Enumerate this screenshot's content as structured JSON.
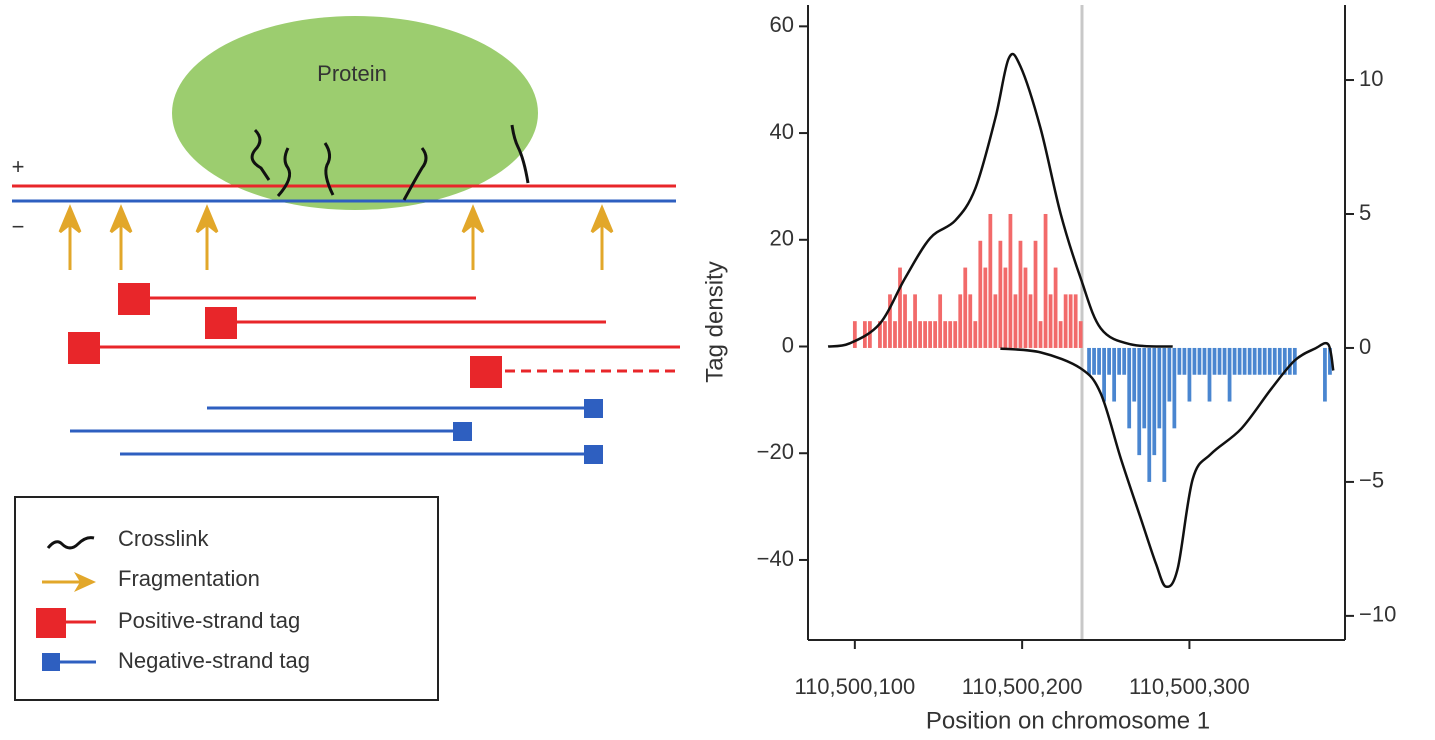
{
  "diagram": {
    "protein_label": "Protein",
    "plus_label": "+",
    "minus_label": "−",
    "legend": [
      "Crosslink",
      "Fragmentation",
      "Positive-strand tag",
      "Negative-strand tag"
    ]
  },
  "chart_data": {
    "type": "line",
    "y_label": "Tag density",
    "x_label": "Position on chromosome 1",
    "xlim": [
      110500072,
      110500393
    ],
    "ylim": [
      -55,
      64
    ],
    "y2lim": [
      -10.9,
      12.8
    ],
    "xticks": [
      {
        "value": 110500100,
        "label": "110,500,100"
      },
      {
        "value": 110500200,
        "label": "110,500,200"
      },
      {
        "value": 110500300,
        "label": "110,500,300"
      }
    ],
    "yticks": [
      60,
      40,
      20,
      0,
      {
        "value": -20,
        "label": "−20"
      },
      {
        "value": -40,
        "label": "−40"
      }
    ],
    "y2ticks": [
      10,
      5,
      0,
      {
        "value": -5,
        "label": "−5"
      },
      {
        "value": -10,
        "label": "−10"
      }
    ],
    "series": [
      {
        "type": "line",
        "color": "#111111",
        "x": [
          110500084,
          110500097,
          110500115,
          110500130,
          110500145,
          110500160,
          110500172,
          110500184,
          110500192,
          110500199,
          110500211,
          110500223,
          110500235,
          110500247,
          110500265,
          110500290
        ],
        "values": [
          0,
          0.6,
          4.3,
          12.8,
          20.3,
          23.6,
          29.6,
          42.8,
          54,
          52.5,
          40.9,
          24.9,
          12.8,
          3.4,
          0.4,
          0
        ]
      },
      {
        "type": "line",
        "color": "#111111",
        "x": [
          110500187,
          110500211,
          110500235,
          110500247,
          110500259,
          110500271,
          110500280,
          110500286,
          110500293,
          110500302,
          110500313,
          110500331,
          110500349,
          110500363,
          110500375,
          110500383,
          110500386
        ],
        "values": [
          -0.4,
          -1.1,
          -4.1,
          -8.8,
          -21,
          -32.3,
          -40.7,
          -45,
          -41.6,
          -24.8,
          -20.1,
          -15.4,
          -7.9,
          -2.6,
          -0.4,
          0.4,
          -4.5
        ]
      },
      {
        "type": "bar",
        "axis": "y2",
        "color": "#f26a6a",
        "x": [
          110500100,
          110500103,
          110500106,
          110500109,
          110500112,
          110500115,
          110500118,
          110500121,
          110500124,
          110500127,
          110500130,
          110500133,
          110500136,
          110500139,
          110500142,
          110500145,
          110500148,
          110500151,
          110500154,
          110500157,
          110500160,
          110500163,
          110500166,
          110500169,
          110500172,
          110500175,
          110500178,
          110500181,
          110500184,
          110500187,
          110500190,
          110500193,
          110500196,
          110500199,
          110500202,
          110500205,
          110500208,
          110500211,
          110500214,
          110500217,
          110500220,
          110500223,
          110500226,
          110500229,
          110500232,
          110500235
        ],
        "values": [
          1,
          0,
          1,
          1,
          0,
          1,
          1,
          2,
          1,
          3,
          2,
          1,
          2,
          1,
          1,
          1,
          1,
          2,
          1,
          1,
          1,
          2,
          3,
          2,
          1,
          4,
          3,
          5,
          2,
          4,
          3,
          5,
          2,
          4,
          3,
          2,
          4,
          1,
          5,
          2,
          3,
          1,
          2,
          2,
          2,
          1
        ]
      },
      {
        "type": "bar",
        "axis": "y2",
        "color": "#4a86d0",
        "x": [
          110500240,
          110500243,
          110500246,
          110500249,
          110500252,
          110500255,
          110500258,
          110500261,
          110500264,
          110500267,
          110500270,
          110500273,
          110500276,
          110500279,
          110500282,
          110500285,
          110500288,
          110500291,
          110500294,
          110500297,
          110500300,
          110500303,
          110500306,
          110500309,
          110500312,
          110500315,
          110500318,
          110500321,
          110500324,
          110500327,
          110500330,
          110500333,
          110500336,
          110500339,
          110500342,
          110500345,
          110500348,
          110500351,
          110500354,
          110500357,
          110500360,
          110500363,
          110500366,
          110500369,
          110500372,
          110500375,
          110500378,
          110500381,
          110500384
        ],
        "values": [
          -1,
          -1,
          -1,
          -2,
          -1,
          -2,
          -1,
          -1,
          -3,
          -2,
          -4,
          -3,
          -5,
          -4,
          -3,
          -5,
          -2,
          -3,
          -1,
          -1,
          -2,
          -1,
          -1,
          -1,
          -2,
          -1,
          -1,
          -1,
          -2,
          -1,
          -1,
          -1,
          -1,
          -1,
          -1,
          -1,
          -1,
          -1,
          -1,
          -1,
          -1,
          -1,
          0,
          0,
          0,
          0,
          0,
          -2,
          -1
        ]
      }
    ]
  }
}
